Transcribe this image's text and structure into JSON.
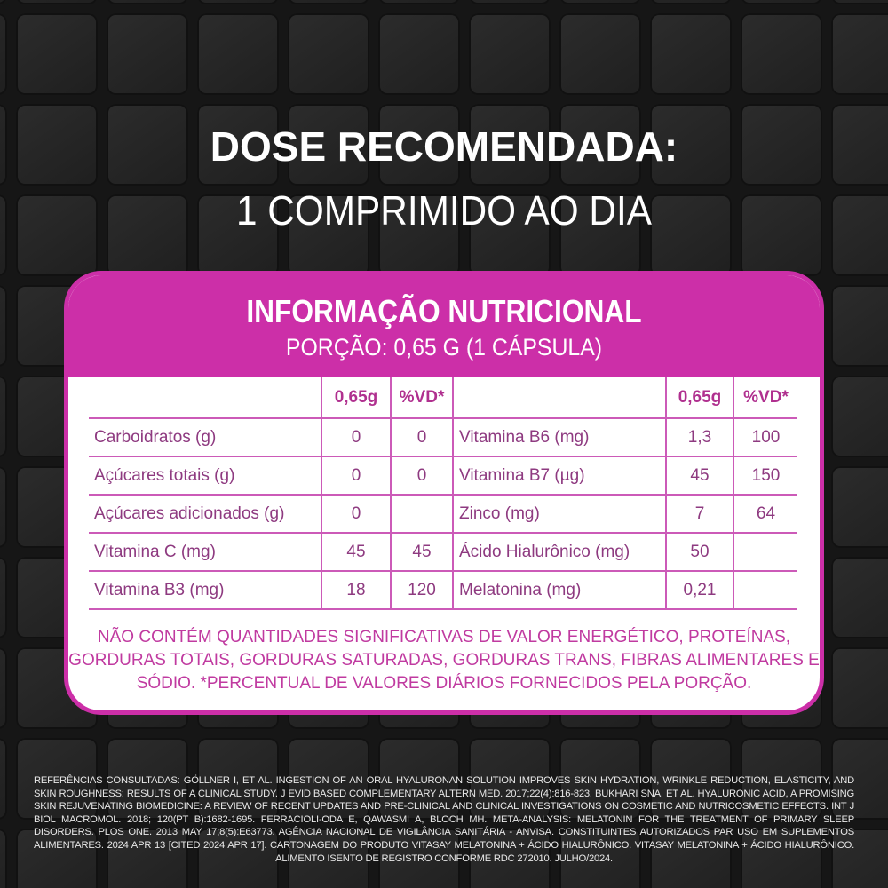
{
  "colors": {
    "accent": "#cc2fa8",
    "table_text": "#8e3a80",
    "note_text": "#c03aa0"
  },
  "hero": {
    "title": "DOSE RECOMENDADA:",
    "subtitle": "1 COMPRIMIDO AO DIA"
  },
  "card": {
    "title": "INFORMAÇÃO NUTRICIONAL",
    "portion": "PORÇÃO: 0,65 G (1 CÁPSULA)",
    "headers": {
      "amount": "0,65g",
      "vd": "%VD*"
    },
    "rows": [
      {
        "left": {
          "name": "Carboidratos (g)",
          "amount": "0",
          "vd": "0"
        },
        "right": {
          "name": "Vitamina B6 (mg)",
          "amount": "1,3",
          "vd": "100"
        }
      },
      {
        "left": {
          "name": "Açúcares totais (g)",
          "amount": "0",
          "vd": "0"
        },
        "right": {
          "name": "Vitamina B7 (µg)",
          "amount": "45",
          "vd": "150"
        }
      },
      {
        "left": {
          "name": "Açúcares adicionados (g)",
          "amount": "0",
          "vd": ""
        },
        "right": {
          "name": "Zinco (mg)",
          "amount": "7",
          "vd": "64"
        }
      },
      {
        "left": {
          "name": "Vitamina C (mg)",
          "amount": "45",
          "vd": "45"
        },
        "right": {
          "name": "Ácido Hialurônico (mg)",
          "amount": "50",
          "vd": ""
        }
      },
      {
        "left": {
          "name": "Vitamina B3 (mg)",
          "amount": "18",
          "vd": "120"
        },
        "right": {
          "name": "Melatonina (mg)",
          "amount": "0,21",
          "vd": ""
        }
      }
    ],
    "note": "NÃO CONTÉM QUANTIDADES SIGNIFICATIVAS DE VALOR ENERGÉTICO, PROTEÍNAS, GORDURAS TOTAIS, GORDURAS SATURADAS, GORDURAS TRANS, FIBRAS ALIMENTARES E SÓDIO. *PERCENTUAL DE VALORES DIÁRIOS FORNECIDOS PELA PORÇÃO."
  },
  "references": "REFERÊNCIAS CONSULTADAS: GÖLLNER I, ET AL. INGESTION OF AN ORAL HYALURONAN SOLUTION IMPROVES SKIN HYDRATION, WRINKLE REDUCTION, ELASTICITY, AND SKIN ROUGHNESS: RESULTS OF A CLINICAL STUDY. J EVID BASED COMPLEMENTARY ALTERN MED. 2017;22(4):816-823. BUKHARI SNA, ET AL. HYALURONIC ACID, A PROMISING SKIN REJUVENATING BIOMEDICINE: A REVIEW OF RECENT UPDATES AND PRE-CLINICAL AND CLINICAL INVESTIGATIONS ON COSMETIC AND NUTRICOSMETIC EFFECTS. INT J BIOL MACROMOL. 2018; 120(PT B):1682-1695. FERRACIOLI-ODA E, QAWASMI A, BLOCH MH. META-ANALYSIS: MELATONIN FOR THE TREATMENT OF PRIMARY SLEEP DISORDERS. PLOS ONE. 2013 MAY 17;8(5):E63773. AGÊNCIA NACIONAL DE VIGILÂNCIA SANITÁRIA - ANVISA. CONSTITUINTES AUTORIZADOS PAR USO EM SUPLEMENTOS ALIMENTARES. 2024 APR 13 [CITED 2024 APR 17]. CARTONAGEM DO PRODUTO VITASAY MELATONINA + ÁCIDO HIALURÔNICO. VITASAY MELATONINA + ÁCIDO HIALURÔNICO. ALIMENTO ISENTO DE REGISTRO CONFORME RDC 272010. JULHO/2024."
}
